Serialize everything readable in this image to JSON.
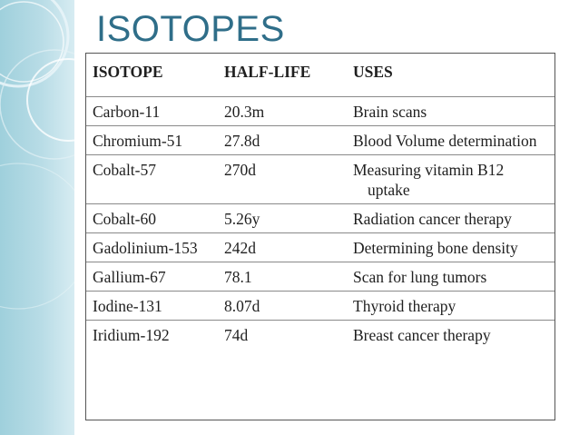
{
  "title": "ISOTOPES",
  "table": {
    "headers": [
      "ISOTOPE",
      "HALF-LIFE",
      "USES"
    ],
    "rows": [
      [
        "Carbon-11",
        "20.3m",
        "Brain scans"
      ],
      [
        "Chromium-51",
        "27.8d",
        "Blood Volume determination"
      ],
      [
        "Cobalt-57",
        "270d",
        "Measuring vitamin B12 uptake"
      ],
      [
        "Cobalt-60",
        "5.26y",
        "Radiation cancer therapy"
      ],
      [
        "Gadolinium-153",
        "242d",
        "Determining bone density"
      ],
      [
        "Gallium-67",
        "78.1",
        "Scan for lung tumors"
      ],
      [
        "Iodine-131",
        "8.07d",
        "Thyroid therapy"
      ],
      [
        "Iridium-192",
        "74d",
        "Breast cancer therapy"
      ]
    ]
  },
  "colors": {
    "title": "#2f6e89",
    "band": "#b8dce6"
  }
}
